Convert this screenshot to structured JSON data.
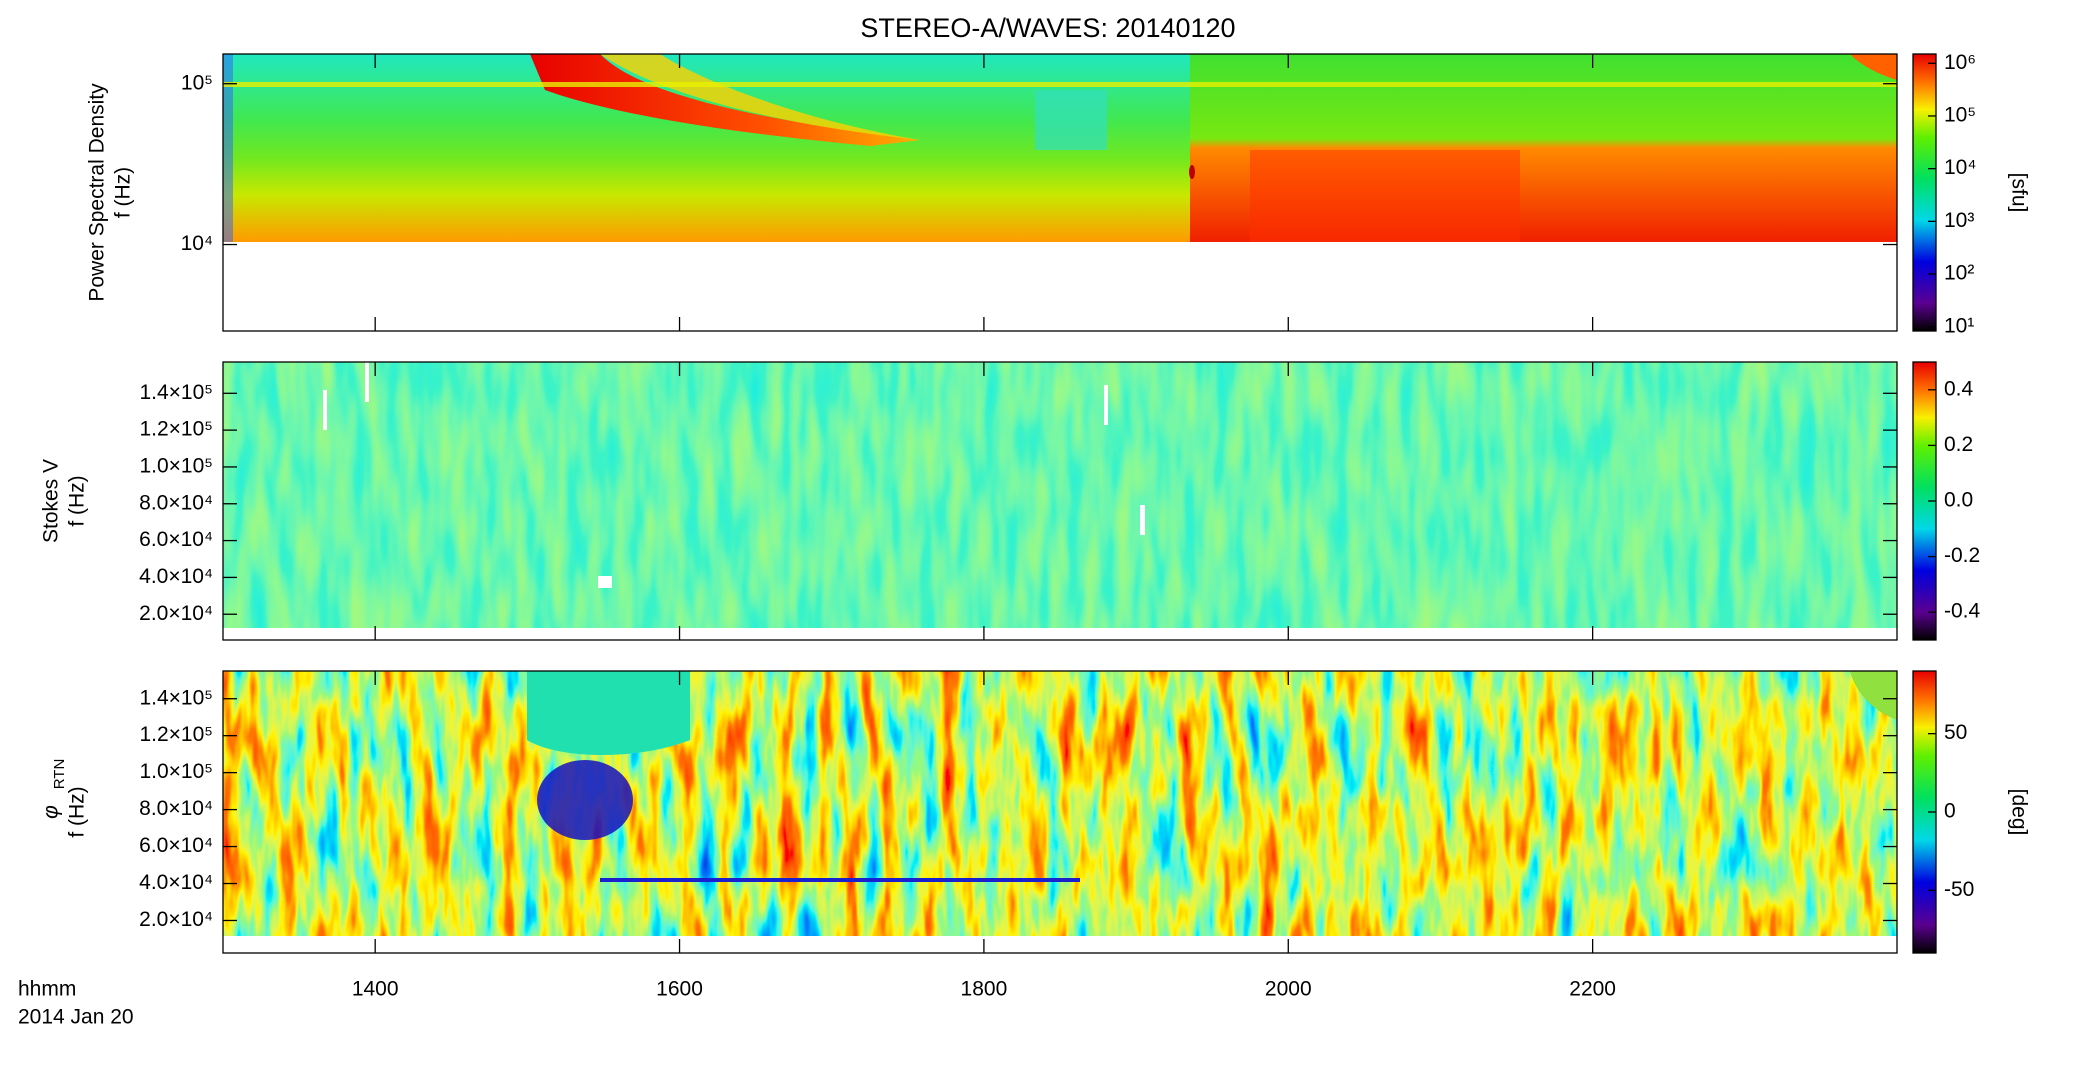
{
  "title": "STEREO-A/WAVES: 20140120",
  "time_axis": {
    "label": "hhmm",
    "date": "2014 Jan 20",
    "xlim": [
      780,
      1440
    ],
    "xticks": [
      {
        "value": 840,
        "label": "1400"
      },
      {
        "value": 960,
        "label": "1600"
      },
      {
        "value": 1080,
        "label": "1800"
      },
      {
        "value": 1200,
        "label": "2000"
      },
      {
        "value": 1320,
        "label": "2200"
      }
    ]
  },
  "chart_data": [
    {
      "type": "spectrogram",
      "ylabel": "Power Spectral Density",
      "ylabel_unit": "f (Hz)",
      "ylog": true,
      "ylim": [
        2900,
        153000
      ],
      "yticks": [
        {
          "value": 10000,
          "label": "10⁴"
        },
        {
          "value": 100000,
          "label": "10⁵"
        }
      ],
      "colorbar": {
        "label": "[sfu]",
        "log": true,
        "clim": [
          8.3,
          1500000
        ],
        "ticks": [
          {
            "value": 10,
            "label": "10¹"
          },
          {
            "value": 100,
            "label": "10²"
          },
          {
            "value": 1000,
            "label": "10³"
          },
          {
            "value": 10000,
            "label": "10⁴"
          },
          {
            "value": 100000,
            "label": "10⁵"
          },
          {
            "value": 1000000,
            "label": "10⁶"
          }
        ]
      }
    },
    {
      "type": "spectrogram",
      "ylabel": "Stokes V",
      "ylabel_unit": "f (Hz)",
      "ylog": false,
      "ylim": [
        6000,
        157000
      ],
      "yticks": [
        {
          "value": 20000,
          "label": "2.0×10⁴"
        },
        {
          "value": 40000,
          "label": "4.0×10⁴"
        },
        {
          "value": 60000,
          "label": "6.0×10⁴"
        },
        {
          "value": 80000,
          "label": "8.0×10⁴"
        },
        {
          "value": 100000,
          "label": "1.0×10⁵"
        },
        {
          "value": 120000,
          "label": "1.2×10⁵"
        },
        {
          "value": 140000,
          "label": "1.4×10⁵"
        }
      ],
      "colorbar": {
        "label": null,
        "log": false,
        "clim": [
          -0.5,
          0.5
        ],
        "ticks": [
          -0.4,
          -0.2,
          {
            "value": 0,
            "label": "0.0"
          },
          0.2,
          0.4
        ]
      }
    },
    {
      "type": "spectrogram",
      "ylabel": "φ",
      "ylabel_sub": "RTN",
      "ylabel_unit": "f (Hz)",
      "ylog": false,
      "ylim": [
        2400,
        155000
      ],
      "yticks": [
        {
          "value": 20000,
          "label": "2.0×10⁴"
        },
        {
          "value": 40000,
          "label": "4.0×10⁴"
        },
        {
          "value": 60000,
          "label": "6.0×10⁴"
        },
        {
          "value": 80000,
          "label": "8.0×10⁴"
        },
        {
          "value": 100000,
          "label": "1.0×10⁵"
        },
        {
          "value": 120000,
          "label": "1.2×10⁵"
        },
        {
          "value": 140000,
          "label": "1.4×10⁵"
        }
      ],
      "colorbar": {
        "label": "[deg]",
        "log": false,
        "clim": [
          -90,
          90
        ],
        "ticks": [
          -50,
          0,
          50
        ]
      }
    }
  ]
}
